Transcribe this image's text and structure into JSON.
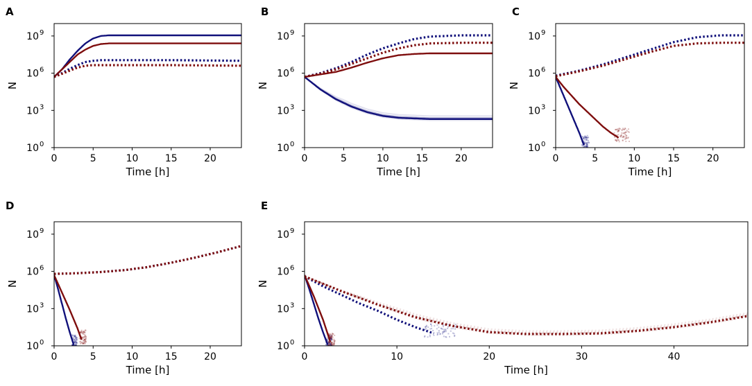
{
  "colors": {
    "blue": "#10107a",
    "red": "#7e0d0d"
  },
  "chart_data": [
    {
      "panel": "A",
      "type": "line",
      "xlabel": "Time [h]",
      "ylabel": "N",
      "xlim": [
        0,
        24
      ],
      "ylim_log10": [
        0,
        10
      ],
      "xticks": [
        "0",
        "5",
        "10",
        "15",
        "20"
      ],
      "yticks": [
        {
          "base": "10",
          "exp": "0"
        },
        {
          "base": "10",
          "exp": "3"
        },
        {
          "base": "10",
          "exp": "6"
        },
        {
          "base": "10",
          "exp": "9"
        }
      ],
      "series": [
        {
          "name": "blue-solid",
          "color": "blue",
          "style": "solid",
          "x": [
            0,
            1,
            2,
            3,
            4,
            5,
            6,
            7,
            8,
            10,
            15,
            24
          ],
          "log10y": [
            5.7,
            6.3,
            7.1,
            7.8,
            8.4,
            8.8,
            9.0,
            9.05,
            9.05,
            9.05,
            9.05,
            9.05
          ]
        },
        {
          "name": "red-solid",
          "color": "red",
          "style": "solid",
          "x": [
            0,
            1,
            2,
            3,
            4,
            5,
            6,
            7,
            8,
            10,
            15,
            24
          ],
          "log10y": [
            5.7,
            6.3,
            6.9,
            7.5,
            7.9,
            8.2,
            8.35,
            8.4,
            8.4,
            8.4,
            8.4,
            8.4
          ]
        },
        {
          "name": "blue-dotted",
          "color": "blue",
          "style": "dotted",
          "x": [
            0,
            1,
            2,
            3,
            4,
            5,
            6,
            7,
            10,
            15,
            24
          ],
          "log10y": [
            5.7,
            6.0,
            6.35,
            6.65,
            6.9,
            7.0,
            7.05,
            7.05,
            7.05,
            7.05,
            7.0
          ]
        },
        {
          "name": "red-dotted",
          "color": "red",
          "style": "dotted",
          "x": [
            0,
            1,
            2,
            3,
            4,
            5,
            6,
            7,
            10,
            15,
            24
          ],
          "log10y": [
            5.7,
            5.95,
            6.2,
            6.45,
            6.6,
            6.65,
            6.65,
            6.65,
            6.65,
            6.65,
            6.6
          ]
        }
      ]
    },
    {
      "panel": "B",
      "type": "line",
      "xlabel": "Time [h]",
      "ylabel": "N",
      "xlim": [
        0,
        24
      ],
      "ylim_log10": [
        0,
        10
      ],
      "xticks": [
        "0",
        "5",
        "10",
        "15",
        "20"
      ],
      "yticks": [
        {
          "base": "10",
          "exp": "0"
        },
        {
          "base": "10",
          "exp": "3"
        },
        {
          "base": "10",
          "exp": "6"
        },
        {
          "base": "10",
          "exp": "9"
        }
      ],
      "series": [
        {
          "name": "blue-solid",
          "color": "blue",
          "style": "solid",
          "x": [
            0,
            2,
            4,
            6,
            8,
            10,
            12,
            14,
            16,
            18,
            20,
            24
          ],
          "log10y": [
            5.7,
            4.7,
            3.9,
            3.3,
            2.85,
            2.55,
            2.4,
            2.35,
            2.3,
            2.3,
            2.3,
            2.3
          ],
          "band": 0.25
        },
        {
          "name": "red-solid",
          "color": "red",
          "style": "solid",
          "x": [
            0,
            2,
            4,
            6,
            8,
            10,
            12,
            14,
            16,
            20,
            24
          ],
          "log10y": [
            5.7,
            5.9,
            6.1,
            6.45,
            6.85,
            7.2,
            7.45,
            7.55,
            7.6,
            7.6,
            7.6
          ]
        },
        {
          "name": "blue-dotted",
          "color": "blue",
          "style": "dotted",
          "x": [
            0,
            2,
            4,
            6,
            8,
            10,
            12,
            14,
            16,
            20,
            24
          ],
          "log10y": [
            5.7,
            6.0,
            6.4,
            6.9,
            7.5,
            8.0,
            8.4,
            8.75,
            8.95,
            9.05,
            9.05
          ]
        },
        {
          "name": "red-dotted",
          "color": "red",
          "style": "dotted",
          "x": [
            0,
            2,
            4,
            6,
            8,
            10,
            12,
            14,
            16,
            20,
            24
          ],
          "log10y": [
            5.7,
            5.95,
            6.3,
            6.75,
            7.2,
            7.65,
            8.0,
            8.25,
            8.4,
            8.45,
            8.45
          ]
        }
      ]
    },
    {
      "panel": "C",
      "type": "line",
      "xlabel": "Time [h]",
      "ylabel": "N",
      "xlim": [
        0,
        24
      ],
      "ylim_log10": [
        0,
        10
      ],
      "xticks": [
        "0",
        "5",
        "10",
        "15",
        "20"
      ],
      "yticks": [
        {
          "base": "10",
          "exp": "0"
        },
        {
          "base": "10",
          "exp": "3"
        },
        {
          "base": "10",
          "exp": "6"
        },
        {
          "base": "10",
          "exp": "9"
        }
      ],
      "series": [
        {
          "name": "blue-solid",
          "color": "blue",
          "style": "solid",
          "x": [
            0,
            1,
            2,
            3,
            3.6
          ],
          "log10y": [
            5.7,
            4.2,
            2.7,
            1.2,
            0.2
          ],
          "scatter_tail": true
        },
        {
          "name": "red-solid",
          "color": "red",
          "style": "solid",
          "x": [
            0,
            1,
            2,
            3,
            4,
            5,
            6,
            7,
            8
          ],
          "log10y": [
            5.7,
            4.9,
            4.2,
            3.5,
            2.9,
            2.3,
            1.7,
            1.2,
            0.8
          ],
          "scatter_tail": true
        },
        {
          "name": "blue-dotted",
          "color": "blue",
          "style": "dotted",
          "x": [
            0,
            3,
            6,
            9,
            12,
            15,
            18,
            21,
            24
          ],
          "log10y": [
            5.8,
            6.2,
            6.7,
            7.3,
            7.9,
            8.5,
            8.9,
            9.05,
            9.05
          ]
        },
        {
          "name": "red-dotted",
          "color": "red",
          "style": "dotted",
          "x": [
            0,
            3,
            6,
            9,
            12,
            15,
            18,
            21,
            24
          ],
          "log10y": [
            5.75,
            6.15,
            6.6,
            7.15,
            7.7,
            8.2,
            8.4,
            8.45,
            8.45
          ]
        }
      ]
    },
    {
      "panel": "D",
      "type": "line",
      "xlabel": "Time [h]",
      "ylabel": "N",
      "xlim": [
        0,
        24
      ],
      "ylim_log10": [
        0,
        10
      ],
      "xticks": [
        "0",
        "5",
        "10",
        "15",
        "20"
      ],
      "yticks": [
        {
          "base": "10",
          "exp": "0"
        },
        {
          "base": "10",
          "exp": "3"
        },
        {
          "base": "10",
          "exp": "6"
        },
        {
          "base": "10",
          "exp": "9"
        }
      ],
      "series": [
        {
          "name": "blue-solid",
          "color": "blue",
          "style": "solid",
          "x": [
            0,
            0.5,
            1,
            1.5,
            2,
            2.5
          ],
          "log10y": [
            5.7,
            4.6,
            3.4,
            2.2,
            1.1,
            0.1
          ],
          "scatter_tail": true
        },
        {
          "name": "red-solid",
          "color": "red",
          "style": "solid",
          "x": [
            0,
            1,
            2,
            3,
            3.5
          ],
          "log10y": [
            5.7,
            4.3,
            2.9,
            1.4,
            0.5
          ],
          "scatter_tail": true
        },
        {
          "name": "blue-dotted",
          "color": "blue",
          "style": "dotted",
          "x": [
            0,
            3,
            6,
            9,
            12,
            15,
            18,
            21,
            24
          ],
          "log10y": [
            5.8,
            5.85,
            5.95,
            6.1,
            6.35,
            6.7,
            7.1,
            7.55,
            8.05
          ]
        },
        {
          "name": "red-dotted",
          "color": "red",
          "style": "dotted",
          "x": [
            0,
            3,
            6,
            9,
            12,
            15,
            18,
            21,
            24
          ],
          "log10y": [
            5.8,
            5.85,
            5.95,
            6.1,
            6.35,
            6.7,
            7.1,
            7.55,
            8.05
          ]
        }
      ]
    },
    {
      "panel": "E",
      "type": "line",
      "xlabel": "Time [h]",
      "ylabel": "N",
      "xlim": [
        0,
        48
      ],
      "ylim_log10": [
        0,
        10
      ],
      "xticks": [
        "0",
        "10",
        "20",
        "30",
        "40"
      ],
      "yticks": [
        {
          "base": "10",
          "exp": "0"
        },
        {
          "base": "10",
          "exp": "3"
        },
        {
          "base": "10",
          "exp": "6"
        },
        {
          "base": "10",
          "exp": "9"
        }
      ],
      "series": [
        {
          "name": "blue-solid",
          "color": "blue",
          "style": "solid",
          "x": [
            0,
            0.5,
            1,
            1.5,
            2,
            2.5
          ],
          "log10y": [
            5.7,
            4.6,
            3.4,
            2.2,
            1.1,
            0.1
          ],
          "scatter_tail": true
        },
        {
          "name": "red-solid",
          "color": "red",
          "style": "solid",
          "x": [
            0,
            1,
            2,
            2.8
          ],
          "log10y": [
            5.7,
            4.0,
            2.1,
            0.3
          ],
          "scatter_tail": true
        },
        {
          "name": "blue-dotted",
          "color": "blue",
          "style": "dotted",
          "x": [
            0,
            2,
            4,
            6,
            8,
            10,
            12,
            14
          ],
          "log10y": [
            5.6,
            4.8,
            4.1,
            3.4,
            2.8,
            2.1,
            1.5,
            1.0
          ],
          "scatter_tail": true
        },
        {
          "name": "red-dotted",
          "color": "red",
          "style": "dotted",
          "x": [
            0,
            4,
            8,
            12,
            16,
            20,
            24,
            28,
            32,
            36,
            40,
            44,
            48
          ],
          "log10y": [
            5.6,
            4.4,
            3.3,
            2.3,
            1.6,
            1.1,
            0.95,
            0.95,
            1.0,
            1.2,
            1.5,
            1.9,
            2.4
          ],
          "band": 0.5
        }
      ]
    }
  ]
}
